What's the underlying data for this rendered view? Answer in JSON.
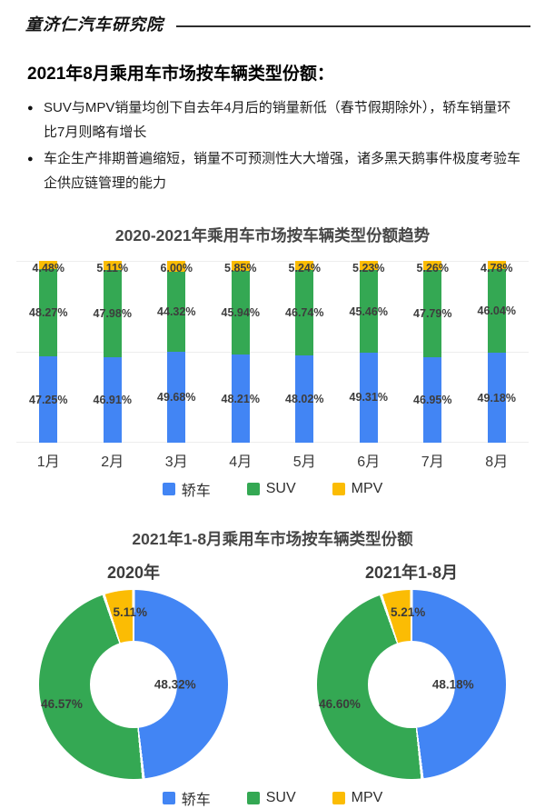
{
  "header": {
    "logo": "童济仁汽车研究院"
  },
  "heading": "2021年8月乘用车市场按车辆类型份额：",
  "bullets": [
    "SUV与MPV销量均创下自去年4月后的销量新低（春节假期除外），轿车销量环比7月则略有增长",
    "车企生产排期普遍缩短，销量不可预测性大大增强，诸多黑天鹅事件极度考验车企供应链管理的能力"
  ],
  "colors": {
    "sedan": "#4285F4",
    "suv": "#34A853",
    "mpv": "#FBBC04"
  },
  "chart_data": [
    {
      "type": "bar",
      "stacked": true,
      "unit": "%",
      "title": "2020-2021年乘用车市场按车辆类型份额趋势",
      "categories": [
        "1月",
        "2月",
        "3月",
        "4月",
        "5月",
        "6月",
        "7月",
        "8月"
      ],
      "series": [
        {
          "name": "轿车",
          "key": "sedan",
          "color": "#4285F4",
          "values": [
            47.25,
            46.91,
            49.68,
            48.21,
            48.02,
            49.31,
            46.95,
            49.18
          ]
        },
        {
          "name": "SUV",
          "key": "suv",
          "color": "#34A853",
          "values": [
            48.27,
            47.98,
            44.32,
            45.94,
            46.74,
            45.46,
            47.79,
            46.04
          ]
        },
        {
          "name": "MPV",
          "key": "mpv",
          "color": "#FBBC04",
          "values": [
            4.48,
            5.11,
            6.0,
            5.85,
            5.24,
            5.23,
            5.26,
            4.78
          ]
        }
      ],
      "ylim": [
        0,
        100
      ],
      "grid": true,
      "legend": [
        "轿车",
        "SUV",
        "MPV"
      ],
      "legend_position": "bottom"
    },
    {
      "type": "pie",
      "subtype": "donut",
      "unit": "%",
      "title": "2021年1-8月乘用车市场按车辆类型份额",
      "donuts": [
        {
          "subtitle": "2020年",
          "slices": [
            {
              "name": "轿车",
              "key": "sedan",
              "value": 48.32
            },
            {
              "name": "SUV",
              "key": "suv",
              "value": 46.57
            },
            {
              "name": "MPV",
              "key": "mpv",
              "value": 5.11
            }
          ]
        },
        {
          "subtitle": "2021年1-8月",
          "slices": [
            {
              "name": "轿车",
              "key": "sedan",
              "value": 48.18
            },
            {
              "name": "SUV",
              "key": "suv",
              "value": 46.6
            },
            {
              "name": "MPV",
              "key": "mpv",
              "value": 5.21
            }
          ]
        }
      ],
      "legend": [
        "轿车",
        "SUV",
        "MPV"
      ],
      "legend_position": "bottom"
    }
  ]
}
